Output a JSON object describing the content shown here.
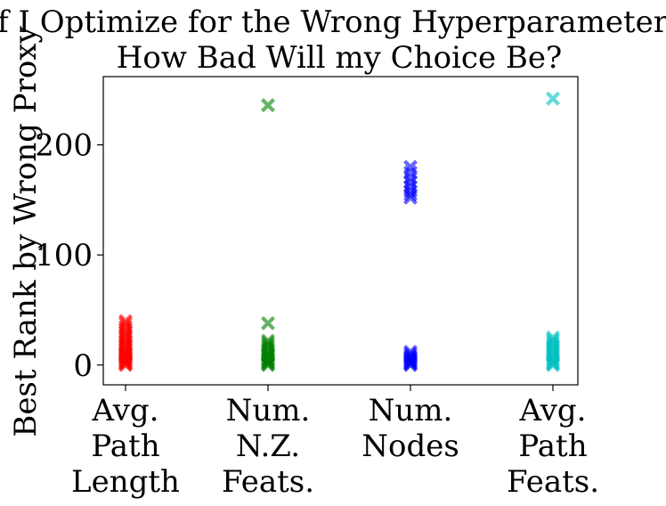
{
  "chart_data": {
    "type": "scatter",
    "title_lines": [
      "If I Optimize for the Wrong Hyperparameters,",
      "How Bad Will my Choice Be?"
    ],
    "ylabel": "Best Rank by Wrong Proxy",
    "xlabel": "",
    "ylim": [
      -18,
      262
    ],
    "yticks": [
      0,
      100,
      200
    ],
    "grid": false,
    "legend": "none",
    "marker": "x",
    "categories": [
      {
        "lines": [
          "Avg.",
          "Path",
          "Length"
        ]
      },
      {
        "lines": [
          "Num.",
          "N.Z.",
          "Feats."
        ]
      },
      {
        "lines": [
          "Num.",
          "Nodes"
        ]
      },
      {
        "lines": [
          "Avg.",
          "Path",
          "Feats."
        ]
      }
    ],
    "series": [
      {
        "category_index": 0,
        "color": "#ff0000",
        "values": [
          0,
          1,
          2,
          3,
          4,
          5,
          6,
          7,
          8,
          9,
          10,
          11,
          12,
          14,
          15,
          17,
          18,
          20,
          22,
          24,
          26,
          28,
          30,
          33,
          35,
          38,
          40
        ]
      },
      {
        "category_index": 1,
        "color": "#008000",
        "values": [
          0,
          1,
          2,
          3,
          4,
          5,
          6,
          8,
          9,
          10,
          12,
          14,
          16,
          18,
          20,
          22,
          38,
          236
        ]
      },
      {
        "category_index": 2,
        "color": "#0000ff",
        "values": [
          0,
          1,
          2,
          3,
          4,
          5,
          6,
          7,
          8,
          10,
          12,
          152,
          155,
          158,
          162,
          166,
          170,
          175,
          180
        ]
      },
      {
        "category_index": 3,
        "color": "#00bfbf",
        "values": [
          0,
          1,
          2,
          4,
          5,
          7,
          9,
          11,
          13,
          15,
          17,
          19,
          21,
          23,
          25,
          242
        ]
      }
    ]
  }
}
